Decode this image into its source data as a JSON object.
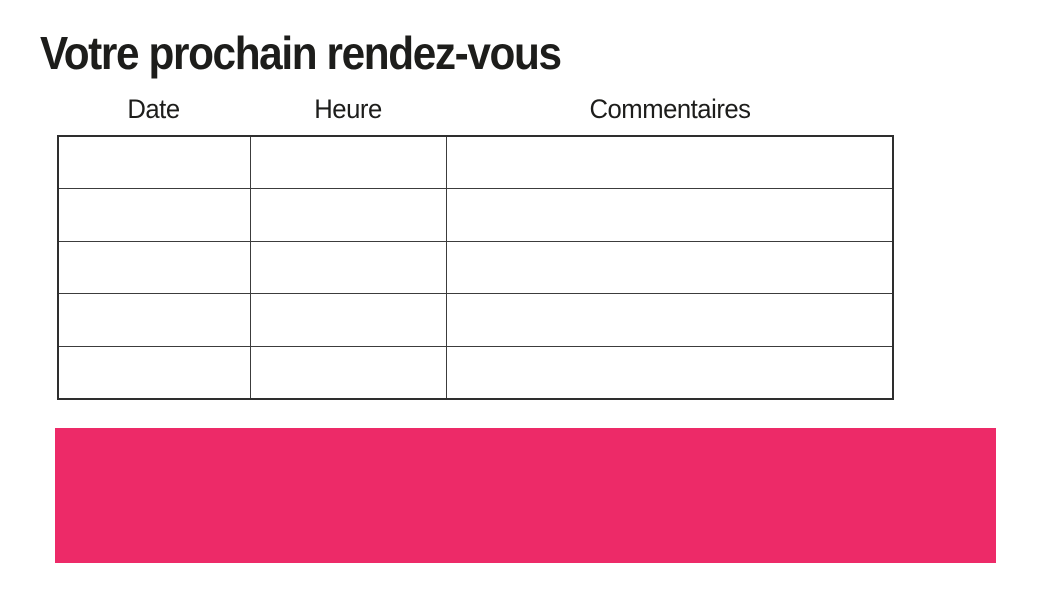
{
  "page": {
    "title": "Votre prochain rendez-vous"
  },
  "table": {
    "columns": [
      {
        "label": "Date"
      },
      {
        "label": "Heure"
      },
      {
        "label": "Commentaires"
      }
    ],
    "rows": [
      [
        "",
        "",
        ""
      ],
      [
        "",
        "",
        ""
      ],
      [
        "",
        "",
        ""
      ],
      [
        "",
        "",
        ""
      ],
      [
        "",
        "",
        ""
      ]
    ]
  },
  "banner": {
    "text": ""
  },
  "colors": {
    "accent_pink": "#ED2A68",
    "text": "#1d1d1b",
    "table_border": "#3c3c3c"
  }
}
